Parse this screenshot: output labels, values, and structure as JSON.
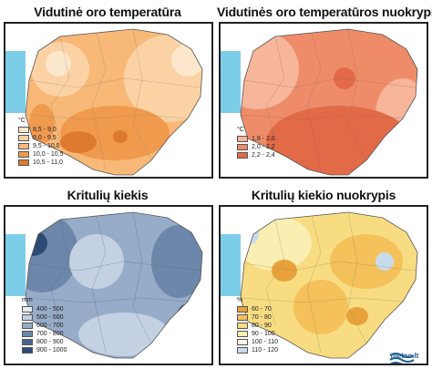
{
  "panels": [
    {
      "title": "Vidutinė oro temperatūra",
      "unit": "°C",
      "legend": [
        {
          "label": "8,5 - 9,0",
          "color": "#fde7cc"
        },
        {
          "label": "9,0 - 9,5",
          "color": "#fbd2a4"
        },
        {
          "label": "9,5 - 10,0",
          "color": "#f8b877"
        },
        {
          "label": "10,0 - 10,5",
          "color": "#f09a4e"
        },
        {
          "label": "10,5 - 11,0",
          "color": "#de7a2f"
        }
      ]
    },
    {
      "title": "Vidutinės oro temperatūros nuokrypis",
      "unit": "°C",
      "legend": [
        {
          "label": "1,8 - 2,0",
          "color": "#f7b59a"
        },
        {
          "label": "2,0 - 2,2",
          "color": "#ee8c69"
        },
        {
          "label": "2,2 - 2,4",
          "color": "#e26a47"
        }
      ]
    },
    {
      "title": "Kritulių kiekis",
      "unit": "mm",
      "legend": [
        {
          "label": "400 - 500",
          "color": "#e6ecf4"
        },
        {
          "label": "500 - 600",
          "color": "#c4d1e2"
        },
        {
          "label": "600 - 700",
          "color": "#97acc8"
        },
        {
          "label": "700 - 800",
          "color": "#6d87ab"
        },
        {
          "label": "800 - 900",
          "color": "#496590"
        },
        {
          "label": "900 - 1000",
          "color": "#2c4a74"
        }
      ]
    },
    {
      "title": "Kritulių kiekio nuokrypis",
      "unit": "%",
      "legend": [
        {
          "label": "60 - 70",
          "color": "#e9a23b"
        },
        {
          "label": "70 - 80",
          "color": "#f4c15a"
        },
        {
          "label": "80 - 90",
          "color": "#f8dc82"
        },
        {
          "label": "90 - 100",
          "color": "#fbeeb2"
        },
        {
          "label": "100 - 110",
          "color": "#fdf9e2"
        },
        {
          "label": "110 - 120",
          "color": "#c9dcec"
        }
      ]
    }
  ],
  "logo": {
    "text": "meteo.lt",
    "icon": "wave-logo-icon"
  },
  "colors": {
    "sea": "#7ccde8",
    "border": "#222222",
    "background": "#ffffff"
  }
}
